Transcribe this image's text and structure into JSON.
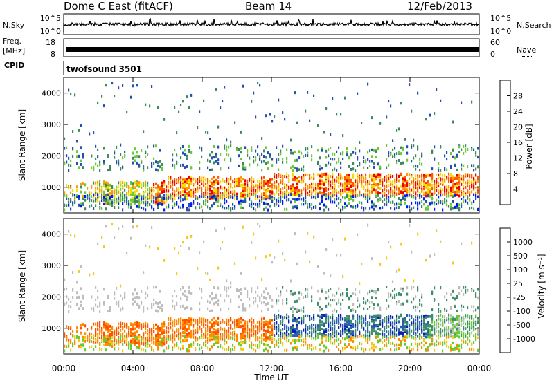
{
  "header": {
    "title": "Dome C East (fitACF)",
    "beam": "Beam 14",
    "date": "12/Feb/2013"
  },
  "left_labels": {
    "nsky": "N.Sky",
    "freq": "Freq.",
    "mhz": "[MHz]",
    "cpid": "CPID"
  },
  "right_labels": {
    "nsearch": "N.Search",
    "nave": "Nave"
  },
  "cpid_value": "twofsound 3501",
  "colors": {
    "power_scale": [
      "#0018ff",
      "#2450b4",
      "#3d8a5e",
      "#6dc93c",
      "#f0e000",
      "#ff9a00",
      "#ff5a00",
      "#f00000"
    ],
    "velocity_scale": [
      "#0a1eb4",
      "#2a5eb0",
      "#3d8f6a",
      "#66cc33",
      "#bebebe",
      "#f0cc20",
      "#ff8c00",
      "#ff5000",
      "#f00000"
    ]
  },
  "chart_data": [
    {
      "type": "line",
      "panel": "noise",
      "yticks_left": [
        "10^5",
        "10^0"
      ],
      "yticks_right": [
        "10^5",
        "10^0"
      ],
      "description_series": [
        {
          "name": "N.Sky"
        },
        {
          "name": "N.Search"
        }
      ]
    },
    {
      "type": "line",
      "panel": "frequency",
      "yticks_left": [
        "18",
        "8"
      ],
      "yticks_right": [
        "60",
        "0"
      ],
      "series": [
        {
          "name": "Freq",
          "values": [
            10,
            10
          ]
        }
      ]
    },
    {
      "type": "heatmap",
      "panel": "power",
      "xlabel": "",
      "ylabel": "Slant Range [km]",
      "xlim": [
        "00:00",
        "24:00"
      ],
      "ylim": [
        180,
        4500
      ],
      "xticks": [
        "00:00",
        "04:00",
        "08:00",
        "12:00",
        "16:00",
        "20:00",
        "00:00"
      ],
      "yticks": [
        1000,
        2000,
        3000,
        4000
      ],
      "colorbar": {
        "label": "Power [dB]",
        "ticks": [
          "28",
          "24",
          "20",
          "16",
          "12",
          "8",
          "4"
        ],
        "range": [
          0,
          32
        ]
      }
    },
    {
      "type": "heatmap",
      "panel": "velocity",
      "xlabel": "Time UT",
      "ylabel": "Slant Range [km]",
      "xlim": [
        "00:00",
        "24:00"
      ],
      "ylim": [
        180,
        4500
      ],
      "xticks": [
        "00:00",
        "04:00",
        "08:00",
        "12:00",
        "16:00",
        "20:00",
        "00:00"
      ],
      "yticks": [
        1000,
        2000,
        3000,
        4000
      ],
      "colorbar": {
        "label": "Velocity [m s⁻¹]",
        "ticks": [
          "1000",
          "500",
          "100",
          "25",
          "-25",
          "-100",
          "-500",
          "-1000"
        ]
      }
    }
  ]
}
